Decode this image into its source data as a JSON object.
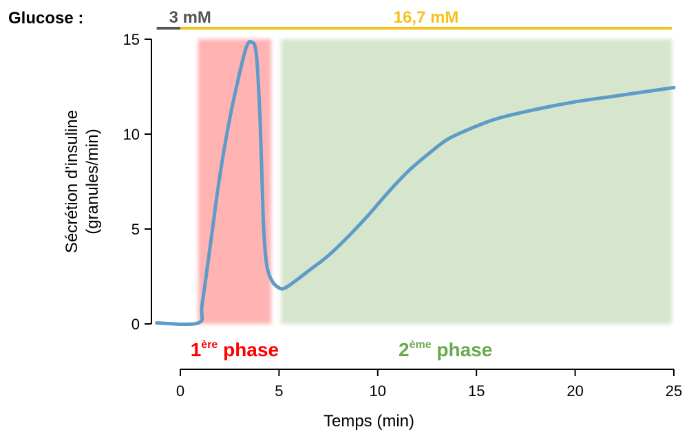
{
  "chart_data": {
    "type": "line",
    "xlabel": "Temps (min)",
    "ylabel_line1": "Sécrétion d’insuline",
    "ylabel_line2": "(granules/min)",
    "xlim": [
      0,
      25
    ],
    "ylim": [
      0,
      15
    ],
    "x_ticks": [
      0,
      5,
      10,
      15,
      20,
      25
    ],
    "y_ticks": [
      0,
      5,
      10,
      15
    ],
    "grid": false,
    "series": [
      {
        "color": "#5e9bc8",
        "points": [
          [
            -1.2,
            0.05
          ],
          [
            0.9,
            0.05
          ],
          [
            1.1,
            1.0
          ],
          [
            1.5,
            4.0
          ],
          [
            2.0,
            7.8
          ],
          [
            2.5,
            10.8
          ],
          [
            3.0,
            13.2
          ],
          [
            3.35,
            14.6
          ],
          [
            3.6,
            14.85
          ],
          [
            3.85,
            14.2
          ],
          [
            4.05,
            10.5
          ],
          [
            4.2,
            5.5
          ],
          [
            4.35,
            3.3
          ],
          [
            4.6,
            2.35
          ],
          [
            5.0,
            1.9
          ],
          [
            5.4,
            1.95
          ],
          [
            6.5,
            2.8
          ],
          [
            7.5,
            3.6
          ],
          [
            8.5,
            4.6
          ],
          [
            9.5,
            5.7
          ],
          [
            10.5,
            6.9
          ],
          [
            11.5,
            8.0
          ],
          [
            12.5,
            8.9
          ],
          [
            13.5,
            9.7
          ],
          [
            14.5,
            10.2
          ],
          [
            16,
            10.8
          ],
          [
            18,
            11.3
          ],
          [
            20,
            11.7
          ],
          [
            22,
            12.0
          ],
          [
            24,
            12.3
          ],
          [
            25,
            12.45
          ]
        ]
      }
    ],
    "phases": [
      {
        "id": "phase-1",
        "sup": "ère",
        "name": "phase",
        "num": "1",
        "x_start": 0.9,
        "x_end": 4.6,
        "color": "#ffb3b3",
        "text_color": "#ff0000"
      },
      {
        "id": "phase-2",
        "sup": "ème",
        "name": "phase",
        "num": "2",
        "x_start": 5.1,
        "x_end": 24.9,
        "color": "#d5e6cc",
        "text_color": "#6aa84f"
      }
    ],
    "glucose": {
      "label": "Glucose :",
      "segments": [
        {
          "label": "3 mM",
          "x_start": -1.2,
          "x_end": 0,
          "color": "#555555"
        },
        {
          "label": "16,7 mM",
          "x_start": 0,
          "x_end": 24.9,
          "color": "#f5c21b"
        }
      ]
    }
  }
}
